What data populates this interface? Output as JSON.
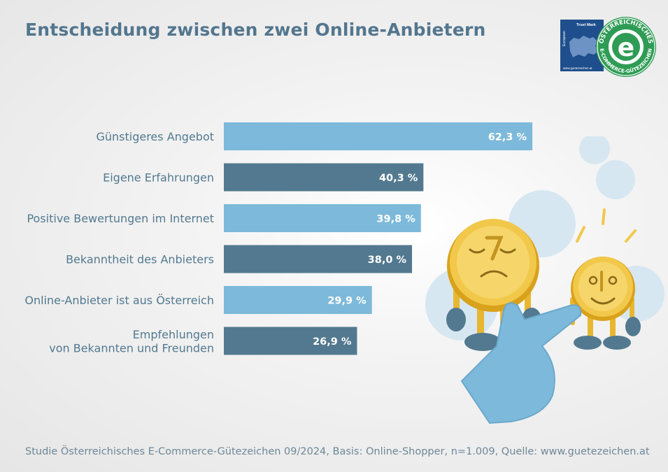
{
  "title": "Entscheidung zwischen zwei Online-Anbietern",
  "footnote": "Studie Österreichisches E-Commerce-Gütezeichen 09/2024, Basis: Online-Shopper, n=1.009, Quelle: www.guetezeichen.at",
  "logo": {
    "badge_top": "Trust Mark",
    "badge_side": "European",
    "badge_url": "www.guetezeichen.at",
    "ring_top": "ÖSTERREICHISCHES",
    "ring_bottom": "E-COMMERCE-GÜTEZEICHEN",
    "center_glyph": "e"
  },
  "colors": {
    "title": "#53768e",
    "bar_light": "#7db9da",
    "bar_dark": "#52798f",
    "label": "#52798f"
  },
  "chart_data": {
    "type": "bar",
    "orientation": "horizontal",
    "categories": [
      [
        "Günstigeres Angebot"
      ],
      [
        "Eigene Erfahrungen"
      ],
      [
        "Positive Bewertungen im Internet"
      ],
      [
        "Bekanntheit des Anbieters"
      ],
      [
        "Online-Anbieter ist aus Österreich"
      ],
      [
        "Empfehlungen",
        "von Bekannten und Freunden"
      ]
    ],
    "values": [
      62.3,
      40.3,
      39.8,
      38.0,
      29.9,
      26.9
    ],
    "value_labels": [
      "62,3 %",
      "40,3 %",
      "39,8 %",
      "38,0 %",
      "29,9 %",
      "26,9 %"
    ],
    "bar_colors": [
      "#7db9da",
      "#52798f",
      "#7db9da",
      "#52798f",
      "#7db9da",
      "#52798f"
    ],
    "xlim": [
      0,
      100
    ],
    "grid": false,
    "legend": "none"
  }
}
